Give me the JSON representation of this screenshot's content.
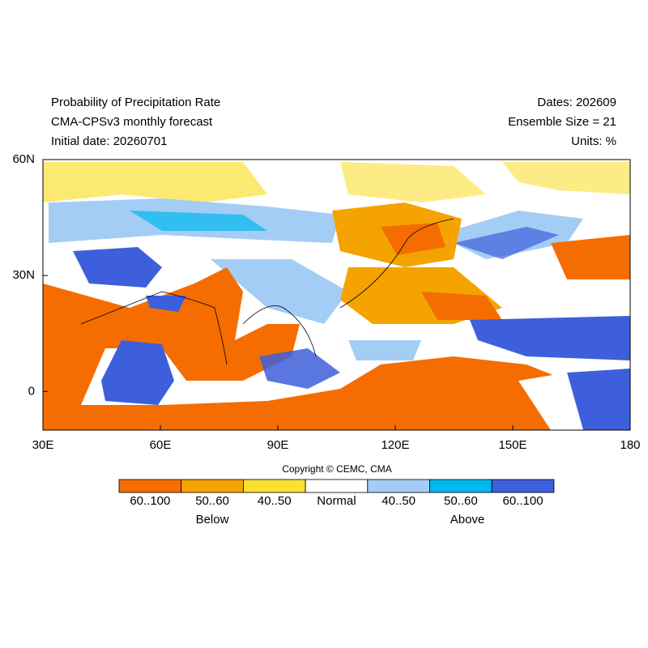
{
  "header": {
    "title": "Probability of Precipitation Rate",
    "subtitle": "CMA-CPSv3 monthly forecast",
    "initial_date": "Initial date: 20260701",
    "dates": "Dates: 202609",
    "ensemble": "Ensemble Size = 21",
    "units": "Units: %"
  },
  "map": {
    "lon_range": [
      30,
      180
    ],
    "lat_range": [
      -10,
      60
    ],
    "x_ticks": [
      {
        "value": 30,
        "label": "30E"
      },
      {
        "value": 60,
        "label": "60E"
      },
      {
        "value": 90,
        "label": "90E"
      },
      {
        "value": 120,
        "label": "120E"
      },
      {
        "value": 150,
        "label": "150E"
      },
      {
        "value": 180,
        "label": "180"
      }
    ],
    "y_ticks": [
      {
        "value": 60,
        "label": "60N"
      },
      {
        "value": 30,
        "label": "30N"
      },
      {
        "value": 0,
        "label": "0"
      }
    ]
  },
  "copyright": "Copyright © CEMC, CMA",
  "legend": {
    "items": [
      {
        "label": "60..100",
        "color": "#f56d00"
      },
      {
        "label": "50..60",
        "color": "#f5a300"
      },
      {
        "label": "40..50",
        "color": "#fbe034"
      },
      {
        "label": "Normal",
        "color": "#ffffff"
      },
      {
        "label": "40..50",
        "color": "#a3cdf5"
      },
      {
        "label": "50..60",
        "color": "#00b8ee"
      },
      {
        "label": "60..100",
        "color": "#3d5fdb"
      }
    ],
    "below": "Below",
    "above": "Above"
  }
}
